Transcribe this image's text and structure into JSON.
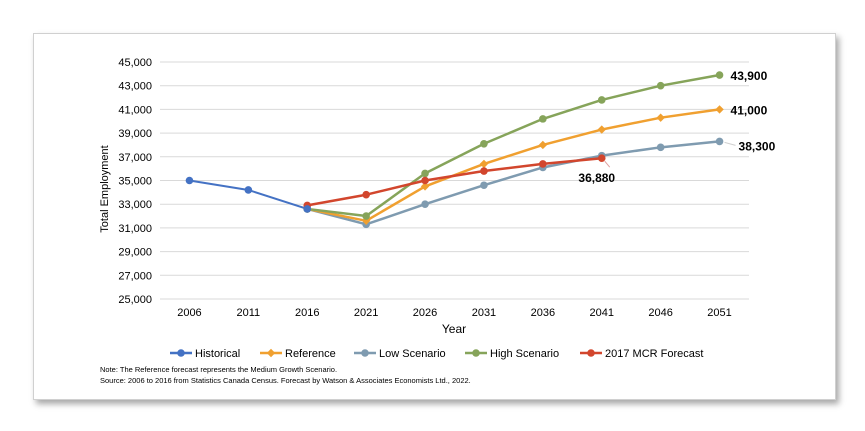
{
  "chart_data": {
    "type": "line",
    "title": "",
    "xlabel": "Year",
    "ylabel": "Total Employment",
    "ylim": [
      25000,
      45000
    ],
    "yticks": [
      25000,
      27000,
      29000,
      31000,
      33000,
      35000,
      37000,
      39000,
      41000,
      43000,
      45000
    ],
    "ytick_labels": [
      "25,000",
      "27,000",
      "29,000",
      "31,000",
      "33,000",
      "35,000",
      "37,000",
      "39,000",
      "41,000",
      "43,000",
      "45,000"
    ],
    "categories": [
      "2006",
      "2011",
      "2016",
      "2021",
      "2026",
      "2031",
      "2036",
      "2041",
      "2046",
      "2051"
    ],
    "grid": true,
    "legend_position": "bottom",
    "series": [
      {
        "name": "Historical",
        "color": "#4472C4",
        "values": [
          35000,
          34200,
          32600,
          null,
          null,
          null,
          null,
          null,
          null,
          null
        ]
      },
      {
        "name": "Reference",
        "color": "#F0A030",
        "values": [
          null,
          null,
          32600,
          31600,
          34500,
          36400,
          38000,
          39300,
          40300,
          41000
        ]
      },
      {
        "name": "Low Scenario",
        "color": "#7F9BB0",
        "values": [
          null,
          null,
          32600,
          31300,
          33000,
          34600,
          36100,
          37100,
          37800,
          38300
        ]
      },
      {
        "name": "High Scenario",
        "color": "#86A45A",
        "values": [
          null,
          null,
          32600,
          32000,
          35600,
          38100,
          40200,
          41800,
          43000,
          43900
        ]
      },
      {
        "name": "2017 MCR Forecast",
        "color": "#D2462D",
        "values": [
          null,
          null,
          32900,
          33800,
          35000,
          35800,
          36400,
          36880,
          null,
          null
        ]
      }
    ],
    "annotations": [
      {
        "text": "43,900",
        "series": "High Scenario",
        "x": "2051",
        "y": 43900
      },
      {
        "text": "41,000",
        "series": "Reference",
        "x": "2051",
        "y": 41000
      },
      {
        "text": "38,300",
        "series": "Low Scenario",
        "x": "2051",
        "y": 38300
      },
      {
        "text": "36,880",
        "series": "2017 MCR Forecast",
        "x": "2041",
        "y": 36880
      }
    ]
  },
  "notes": {
    "note": "Note: The Reference forecast represents the Medium Growth Scenario.",
    "source": "Source: 2006 to 2016 from Statistics Canada Census. Forecast by Watson & Associates Economists Ltd., 2022."
  }
}
